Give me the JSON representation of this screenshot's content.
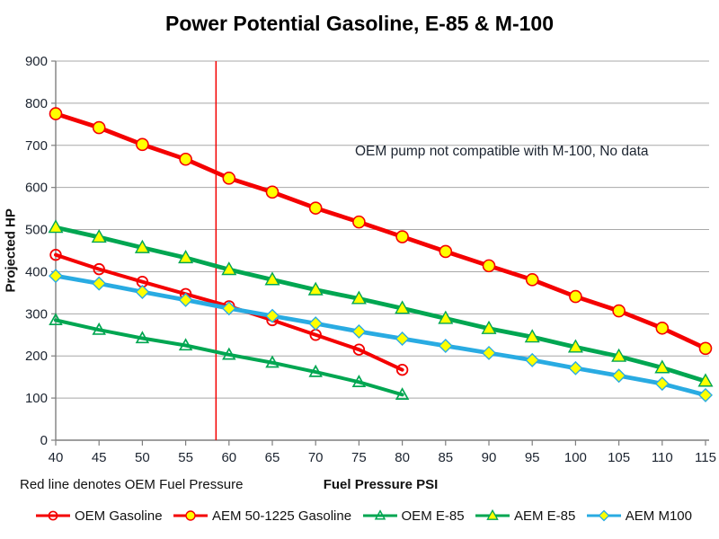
{
  "chart_data": {
    "type": "line",
    "title": "Power Potential Gasoline, E-85 & M-100",
    "xlabel": "Fuel Pressure PSI",
    "ylabel": "Projected HP",
    "annotation": "OEM pump not compatible with M-100, No data",
    "footnote": "Red line denotes OEM Fuel Pressure",
    "xlim": [
      40,
      115
    ],
    "x_tick_step": 5,
    "ylim": [
      0,
      900
    ],
    "y_tick_step": 100,
    "grid": true,
    "legend_position": "bottom",
    "oem_pressure_line": {
      "x": 58.5,
      "color": "#f40000"
    },
    "marker_fill": "#ffff00",
    "x": [
      40,
      45,
      50,
      55,
      60,
      65,
      70,
      75,
      80,
      85,
      90,
      95,
      100,
      105,
      110,
      115
    ],
    "series": [
      {
        "name": "OEM Gasoline",
        "color": "#f40000",
        "marker": "open-circle",
        "values": [
          440,
          406,
          376,
          347,
          318,
          285,
          250,
          215,
          167
        ]
      },
      {
        "name": "AEM 50-1225 Gasoline",
        "color": "#f40000",
        "marker": "yellow-circle",
        "values": [
          775,
          742,
          702,
          667,
          622,
          589,
          551,
          518,
          483,
          448,
          414,
          381,
          341,
          307,
          266,
          218
        ]
      },
      {
        "name": "OEM E-85",
        "color": "#00a651",
        "marker": "open-triangle",
        "values": [
          285,
          262,
          242,
          225,
          203,
          184,
          162,
          138,
          108
        ]
      },
      {
        "name": "AEM E-85",
        "color": "#00a651",
        "marker": "yellow-triangle",
        "values": [
          505,
          482,
          457,
          433,
          405,
          381,
          357,
          336,
          313,
          289,
          265,
          245,
          221,
          199,
          172,
          140
        ]
      },
      {
        "name": "AEM M100",
        "color": "#29abe2",
        "marker": "yellow-diamond",
        "values": [
          390,
          372,
          352,
          333,
          313,
          295,
          277,
          258,
          241,
          224,
          207,
          190,
          171,
          153,
          134,
          107
        ]
      }
    ]
  }
}
